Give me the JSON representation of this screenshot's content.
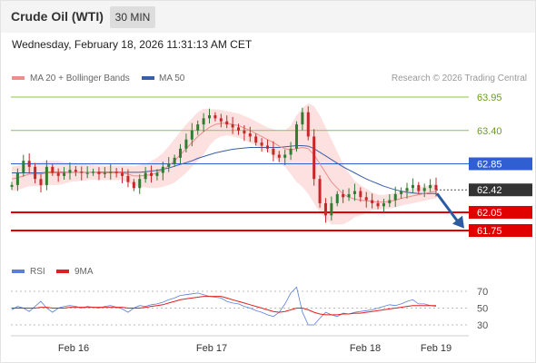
{
  "header": {
    "title": "Crude Oil (WTI)",
    "timeframe": "30 MIN"
  },
  "timestamp": "Wednesday, February 18, 2026 11:31:13 AM CET",
  "legend": {
    "ma20_label": "MA 20 + Bollinger Bands",
    "ma50_label": "MA 50",
    "rsi_label": "RSI",
    "rsi_ma_label": "9MA",
    "credit": "Research © 2026 Trading Central"
  },
  "colors": {
    "ma20": "#f08c8c",
    "ma50": "#3a5fa8",
    "bands": "#fde0e0",
    "bull": "#2e7d32",
    "bear": "#c62828",
    "resistance_green": "#8bc34a",
    "pivot_blue": "#2f5fd0",
    "support_red": "#e00000",
    "price_box": "#333333",
    "arrow": "#2a5ba0",
    "rsi_line": "#5b7fd8",
    "rsi_ma": "#e02020"
  },
  "chart_data": [
    {
      "type": "candlestick",
      "symbol": "Crude Oil (WTI)",
      "timeframe": "30 MIN",
      "x_labels": [
        "Feb 16",
        "Feb 17",
        "Feb 18",
        "Feb 19"
      ],
      "ylim": [
        61.6,
        64.0
      ],
      "current_price": 62.42,
      "levels": [
        {
          "value": 63.95,
          "label": "63.95",
          "kind": "resistance"
        },
        {
          "value": 63.4,
          "label": "63.40",
          "kind": "resistance"
        },
        {
          "value": 62.85,
          "label": "62.85",
          "kind": "pivot"
        },
        {
          "value": 62.05,
          "label": "62.05",
          "kind": "support"
        },
        {
          "value": 61.75,
          "label": "61.75",
          "kind": "support"
        }
      ],
      "forecast": {
        "from": 62.42,
        "to": 61.8,
        "direction": "down"
      },
      "series": [
        {
          "name": "MA 20 + Bollinger Bands"
        },
        {
          "name": "MA 50"
        }
      ],
      "closes": [
        62.5,
        62.7,
        62.9,
        62.8,
        62.6,
        62.5,
        62.8,
        62.7,
        62.65,
        62.7,
        62.75,
        62.72,
        62.7,
        62.7,
        62.72,
        62.68,
        62.7,
        62.72,
        62.7,
        62.65,
        62.55,
        62.45,
        62.6,
        62.7,
        62.65,
        62.7,
        62.8,
        62.85,
        62.95,
        63.1,
        63.25,
        63.4,
        63.5,
        63.6,
        63.65,
        63.6,
        63.55,
        63.5,
        63.45,
        63.4,
        63.35,
        63.3,
        63.2,
        63.15,
        63.1,
        63.0,
        62.95,
        63.0,
        63.1,
        63.5,
        63.7,
        63.3,
        62.6,
        62.2,
        62.0,
        62.2,
        62.35,
        62.3,
        62.35,
        62.4,
        62.3,
        62.25,
        62.2,
        62.15,
        62.2,
        62.25,
        62.35,
        62.4,
        62.45,
        62.5,
        62.4,
        62.45,
        62.5,
        62.42
      ],
      "ma20_values": [
        62.6,
        62.62,
        62.65,
        62.68,
        62.68,
        62.68,
        62.7,
        62.7,
        62.7,
        62.7,
        62.71,
        62.71,
        62.71,
        62.71,
        62.71,
        62.7,
        62.7,
        62.7,
        62.7,
        62.7,
        62.68,
        62.65,
        62.65,
        62.66,
        62.67,
        62.7,
        62.75,
        62.82,
        62.9,
        63.0,
        63.1,
        63.2,
        63.3,
        63.38,
        63.45,
        63.5,
        63.52,
        63.52,
        63.5,
        63.48,
        63.44,
        63.4,
        63.35,
        63.3,
        63.25,
        63.2,
        63.14,
        63.1,
        63.08,
        63.1,
        63.12,
        63.1,
        63.0,
        62.85,
        62.7,
        62.55,
        62.45,
        62.35,
        62.3,
        62.27,
        62.25,
        62.24,
        62.23,
        62.22,
        62.22,
        62.23,
        62.25,
        62.28,
        62.3,
        62.32,
        62.34,
        62.36,
        62.38,
        62.4
      ],
      "ma50_values": [
        62.7,
        62.7,
        62.7,
        62.7,
        62.7,
        62.7,
        62.71,
        62.71,
        62.71,
        62.71,
        62.71,
        62.71,
        62.71,
        62.71,
        62.71,
        62.71,
        62.71,
        62.71,
        62.71,
        62.71,
        62.71,
        62.71,
        62.71,
        62.72,
        62.73,
        62.74,
        62.76,
        62.78,
        62.81,
        62.84,
        62.87,
        62.9,
        62.94,
        62.97,
        63.0,
        63.03,
        63.05,
        63.07,
        63.09,
        63.1,
        63.11,
        63.12,
        63.12,
        63.12,
        63.12,
        63.12,
        63.12,
        63.13,
        63.14,
        63.15,
        63.15,
        63.14,
        63.1,
        63.04,
        62.98,
        62.92,
        62.86,
        62.8,
        62.75,
        62.7,
        62.65,
        62.6,
        62.56,
        62.52,
        62.48,
        62.45,
        62.42,
        62.4,
        62.38,
        62.37,
        62.36,
        62.36,
        62.36,
        62.36
      ],
      "band_width": [
        0.2,
        0.2,
        0.2,
        0.2,
        0.2,
        0.2,
        0.2,
        0.2,
        0.2,
        0.18,
        0.16,
        0.15,
        0.14,
        0.13,
        0.12,
        0.12,
        0.12,
        0.12,
        0.12,
        0.12,
        0.14,
        0.16,
        0.18,
        0.2,
        0.22,
        0.25,
        0.28,
        0.32,
        0.36,
        0.38,
        0.4,
        0.4,
        0.4,
        0.38,
        0.3,
        0.25,
        0.22,
        0.2,
        0.2,
        0.2,
        0.2,
        0.2,
        0.2,
        0.2,
        0.2,
        0.22,
        0.26,
        0.3,
        0.4,
        0.55,
        0.65,
        0.75,
        0.8,
        0.8,
        0.75,
        0.7,
        0.6,
        0.5,
        0.4,
        0.3,
        0.25,
        0.2,
        0.15,
        0.12,
        0.12,
        0.12,
        0.12,
        0.12,
        0.12,
        0.12,
        0.12,
        0.12,
        0.12,
        0.12
      ]
    },
    {
      "type": "line",
      "name": "RSI",
      "yticks": [
        70,
        50,
        30
      ],
      "series": [
        {
          "name": "RSI",
          "values": [
            48,
            52,
            50,
            46,
            52,
            58,
            50,
            45,
            50,
            52,
            53,
            52,
            50,
            52,
            51,
            50,
            52,
            53,
            51,
            49,
            45,
            50,
            53,
            52,
            54,
            55,
            57,
            60,
            62,
            65,
            66,
            67,
            68,
            66,
            64,
            63,
            62,
            58,
            56,
            55,
            52,
            50,
            47,
            45,
            42,
            40,
            45,
            55,
            68,
            75,
            45,
            30,
            30,
            38,
            45,
            42,
            40,
            44,
            43,
            45,
            46,
            47,
            48,
            50,
            52,
            54,
            53,
            55,
            58,
            60,
            55,
            55,
            53,
            52
          ]
        },
        {
          "name": "9MA",
          "values": [
            50,
            50,
            50,
            50,
            50,
            51,
            51,
            50,
            50,
            50,
            51,
            51,
            51,
            51,
            51,
            51,
            51,
            51,
            51,
            51,
            50,
            50,
            50,
            51,
            52,
            53,
            54,
            56,
            58,
            60,
            61,
            62,
            63,
            64,
            64,
            64,
            64,
            62,
            60,
            58,
            56,
            54,
            52,
            50,
            48,
            46,
            45,
            46,
            48,
            50,
            50,
            48,
            45,
            43,
            42,
            42,
            42,
            43,
            43,
            44,
            44,
            45,
            46,
            47,
            48,
            49,
            50,
            51,
            52,
            53,
            53,
            53,
            53,
            53
          ]
        }
      ]
    }
  ]
}
